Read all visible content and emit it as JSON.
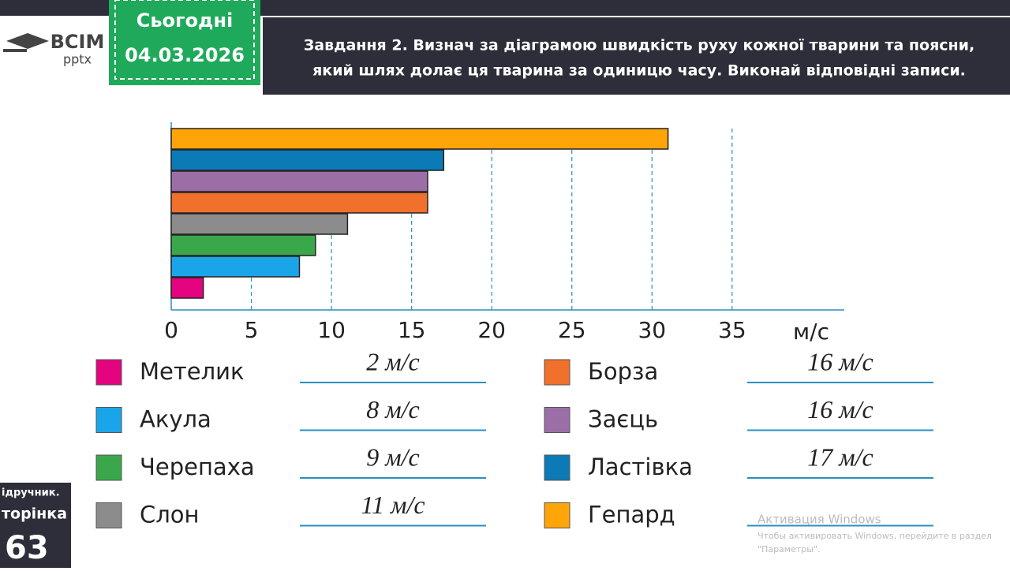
{
  "logo": {
    "brand": "ВСІМ",
    "sub": "pptx"
  },
  "date_box": {
    "label": "Сьогодні",
    "date": "04.03.2026"
  },
  "task": {
    "lines": [
      "Завдання 2. Визнач за діаграмою швидкість руху кожної тварини та поясни,",
      "який шлях долає ця тварина за одиницю часу. Виконай відповідні записи."
    ]
  },
  "page_ref": {
    "line1": "ідручник.",
    "line2": "торінка",
    "number": "63"
  },
  "watermark": {
    "title": "Активация Windows",
    "text1": "Чтобы активировать Windows, перейдите в раздел",
    "text2": "\"Параметры\"."
  },
  "chart_data": {
    "type": "barh",
    "categories": [
      "Метелик",
      "Акула",
      "Черепаха",
      "Слон",
      "Борза",
      "Заєць",
      "Ластівка",
      "Гепард"
    ],
    "values": [
      2,
      8,
      9,
      11,
      16,
      16,
      17,
      31
    ],
    "value_labels": [
      "2 м/с",
      "8 м/с",
      "9 м/с",
      "11 м/с",
      "16 м/с",
      "16 м/с",
      "17 м/с",
      null
    ],
    "colors": [
      "#e4047f",
      "#1aa5e8",
      "#3aa84a",
      "#8c8c8c",
      "#f0702c",
      "#9b6ea6",
      "#0b7ab6",
      "#ffa50a"
    ],
    "x_label": "м/с",
    "xlim": [
      0,
      42
    ],
    "xticks": [
      0,
      5,
      10,
      15,
      20,
      25,
      30,
      35
    ],
    "grid": true
  }
}
